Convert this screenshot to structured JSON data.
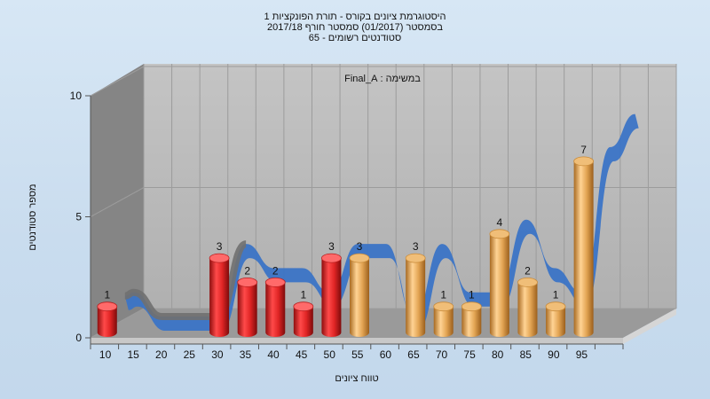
{
  "chart_data": {
    "type": "bar",
    "title_lines": [
      "היסטוגרמת ציונים בקורס - תורת הפונקציות 1",
      "בסמסטר  (01/2017)  סמסטר חורף  2017/18",
      "סטודנטים רשומים - 65"
    ],
    "annotation": "במשימה : Final_A",
    "xlabel": "טווח ציונים",
    "ylabel": "מספר סטודנטים",
    "ylim": [
      0,
      10
    ],
    "yticks": [
      0,
      5,
      10
    ],
    "categories": [
      "10",
      "15",
      "20",
      "25",
      "30",
      "35",
      "40",
      "45",
      "50",
      "55",
      "60",
      "65",
      "70",
      "75",
      "80",
      "85",
      "90",
      "95"
    ],
    "values": [
      1,
      0,
      0,
      0,
      3,
      2,
      2,
      1,
      3,
      3,
      0,
      3,
      1,
      1,
      4,
      2,
      1,
      7
    ],
    "colors": {
      "fail": "#d42a2a",
      "pass": "#e0a04c",
      "ribbon_front": "#3b74c6",
      "ribbon_back": "#707070"
    },
    "bar_groups": [
      "fail",
      "fail",
      "fail",
      "fail",
      "fail",
      "fail",
      "fail",
      "fail",
      "fail",
      "pass",
      "pass",
      "pass",
      "pass",
      "pass",
      "pass",
      "pass",
      "pass",
      "pass"
    ]
  }
}
